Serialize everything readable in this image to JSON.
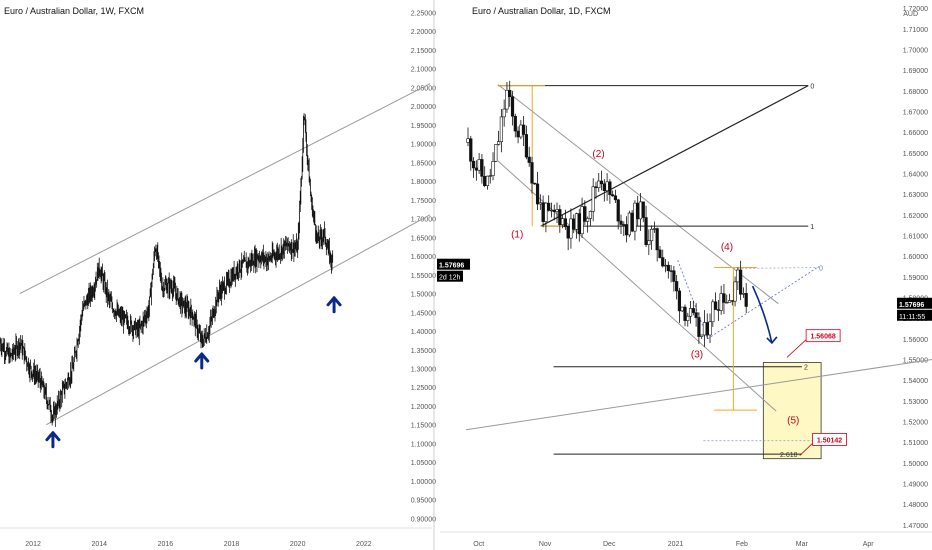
{
  "colors": {
    "background": "#ffffff",
    "candle": "#111111",
    "channel": "#9a9a9a",
    "fib": "#222222",
    "projection": "#f5a623",
    "wave_label": "#d0021b",
    "arrow_blue": "#0a2a8a",
    "target_box": "#fdf8c4",
    "target_box_border": "#333333",
    "callout_red": "#d0021b",
    "price_tag_bg": "#000000",
    "price_tag_fg": "#ffffff",
    "grid_axis_text": "#555555"
  },
  "chart_data": [
    {
      "type": "candlestick",
      "title": "Euro / Australian Dollar, 1W, FXCM",
      "timeframe": "1W",
      "x_ticks": [
        "2012",
        "2014",
        "2016",
        "2018",
        "2020",
        "2022"
      ],
      "x_range": [
        2011.0,
        2024.0
      ],
      "y_ticks": [
        "2.25000",
        "2.20000",
        "2.15000",
        "2.10000",
        "2.05000",
        "2.00000",
        "1.95000",
        "1.90000",
        "1.85000",
        "1.80000",
        "1.75000",
        "1.70000",
        "1.65000",
        "1.60000",
        "1.55000",
        "1.50000",
        "1.45000",
        "1.40000",
        "1.35000",
        "1.30000",
        "1.25000",
        "1.20000",
        "1.15000",
        "1.10000",
        "1.05000",
        "1.00000",
        "0.95000",
        "0.90000"
      ],
      "ylim": [
        0.885,
        2.27
      ],
      "last_price": "1.57696",
      "countdown": "2d 12h",
      "price_path": [
        [
          2011.0,
          1.37
        ],
        [
          2011.3,
          1.33
        ],
        [
          2011.6,
          1.37
        ],
        [
          2011.9,
          1.3
        ],
        [
          2012.2,
          1.27
        ],
        [
          2012.5,
          1.2
        ],
        [
          2012.6,
          1.17
        ],
        [
          2012.9,
          1.24
        ],
        [
          2013.2,
          1.3
        ],
        [
          2013.5,
          1.46
        ],
        [
          2013.8,
          1.51
        ],
        [
          2014.0,
          1.57
        ],
        [
          2014.3,
          1.48
        ],
        [
          2014.6,
          1.44
        ],
        [
          2014.9,
          1.42
        ],
        [
          2015.2,
          1.4
        ],
        [
          2015.5,
          1.46
        ],
        [
          2015.7,
          1.63
        ],
        [
          2015.9,
          1.52
        ],
        [
          2016.2,
          1.52
        ],
        [
          2016.5,
          1.47
        ],
        [
          2016.8,
          1.45
        ],
        [
          2017.1,
          1.37
        ],
        [
          2017.3,
          1.4
        ],
        [
          2017.6,
          1.5
        ],
        [
          2017.9,
          1.53
        ],
        [
          2018.2,
          1.57
        ],
        [
          2018.5,
          1.58
        ],
        [
          2018.8,
          1.6
        ],
        [
          2019.1,
          1.59
        ],
        [
          2019.4,
          1.61
        ],
        [
          2019.7,
          1.63
        ],
        [
          2020.0,
          1.62
        ],
        [
          2020.2,
          1.97
        ],
        [
          2020.4,
          1.75
        ],
        [
          2020.6,
          1.64
        ],
        [
          2020.8,
          1.66
        ],
        [
          2020.9,
          1.62
        ],
        [
          2021.05,
          1.58
        ]
      ],
      "channel": {
        "upper": [
          [
            2011.6,
            1.5
          ],
          [
            2024.0,
            2.06
          ]
        ],
        "lower": [
          [
            2012.4,
            1.15
          ],
          [
            2024.0,
            1.71
          ]
        ]
      },
      "support_arrows": [
        [
          2012.6,
          1.15
        ],
        [
          2017.1,
          1.36
        ],
        [
          2021.1,
          1.51
        ]
      ]
    },
    {
      "type": "candlestick",
      "title": "Euro / Australian Dollar, 1D, FXCM",
      "timeframe": "1D",
      "y_unit": "AUD",
      "x_ticks": [
        "Oct",
        "Nov",
        "Dec",
        "2021",
        "Feb",
        "Mar",
        "Apr"
      ],
      "x_range": [
        0,
        200
      ],
      "x_tick_days": [
        5,
        36,
        66,
        97,
        128,
        156,
        187
      ],
      "y_ticks": [
        "1.72000",
        "1.71000",
        "1.70000",
        "1.69000",
        "1.68000",
        "1.67000",
        "1.66000",
        "1.65000",
        "1.64000",
        "1.63000",
        "1.62000",
        "1.61000",
        "1.60000",
        "1.59000",
        "1.58000",
        "1.57000",
        "1.56000",
        "1.55000",
        "1.54000",
        "1.53000",
        "1.52000",
        "1.51000",
        "1.50000",
        "1.49000",
        "1.48000",
        "1.47000"
      ],
      "ylim": [
        1.4675,
        1.7215
      ],
      "top_label": "1.71000",
      "last_price": "1.57696",
      "countdown": "11:11:55",
      "price_path": [
        [
          0,
          1.655
        ],
        [
          3,
          1.645
        ],
        [
          6,
          1.64
        ],
        [
          9,
          1.635
        ],
        [
          12,
          1.645
        ],
        [
          15,
          1.66
        ],
        [
          18,
          1.68
        ],
        [
          21,
          1.665
        ],
        [
          24,
          1.66
        ],
        [
          27,
          1.655
        ],
        [
          30,
          1.64
        ],
        [
          33,
          1.625
        ],
        [
          36,
          1.62
        ],
        [
          39,
          1.618
        ],
        [
          42,
          1.622
        ],
        [
          45,
          1.616
        ],
        [
          48,
          1.613
        ],
        [
          51,
          1.615
        ],
        [
          54,
          1.62
        ],
        [
          57,
          1.625
        ],
        [
          60,
          1.635
        ],
        [
          62,
          1.64
        ],
        [
          65,
          1.632
        ],
        [
          68,
          1.626
        ],
        [
          71,
          1.62
        ],
        [
          74,
          1.614
        ],
        [
          77,
          1.618
        ],
        [
          80,
          1.624
        ],
        [
          83,
          1.611
        ],
        [
          86,
          1.61
        ],
        [
          89,
          1.604
        ],
        [
          92,
          1.598
        ],
        [
          95,
          1.59
        ],
        [
          98,
          1.58
        ],
        [
          101,
          1.575
        ],
        [
          104,
          1.57
        ],
        [
          107,
          1.564
        ],
        [
          110,
          1.56
        ],
        [
          113,
          1.572
        ],
        [
          116,
          1.578
        ],
        [
          119,
          1.583
        ],
        [
          122,
          1.578
        ],
        [
          125,
          1.59
        ],
        [
          128,
          1.585
        ],
        [
          131,
          1.578
        ]
      ],
      "wave_labels": [
        {
          "text": "(1)",
          "day": 23,
          "price": 1.609
        },
        {
          "text": "(2)",
          "day": 61,
          "price": 1.648
        },
        {
          "text": "(3)",
          "day": 107,
          "price": 1.551
        },
        {
          "text": "(4)",
          "day": 121,
          "price": 1.603
        },
        {
          "text": "(5)",
          "day": 152,
          "price": 1.519
        }
      ],
      "fib_levels": [
        {
          "label": "0",
          "price": 1.6825
        },
        {
          "label": "1",
          "price": 1.6145
        },
        {
          "label": "2",
          "price": 1.5465
        },
        {
          "label": "1",
          "price": 1.5107
        },
        {
          "label": "2.618",
          "price": 1.5042
        }
      ],
      "callouts": [
        "1.56068",
        "1.50142"
      ],
      "target_zone": [
        1.502,
        1.5485
      ]
    }
  ]
}
